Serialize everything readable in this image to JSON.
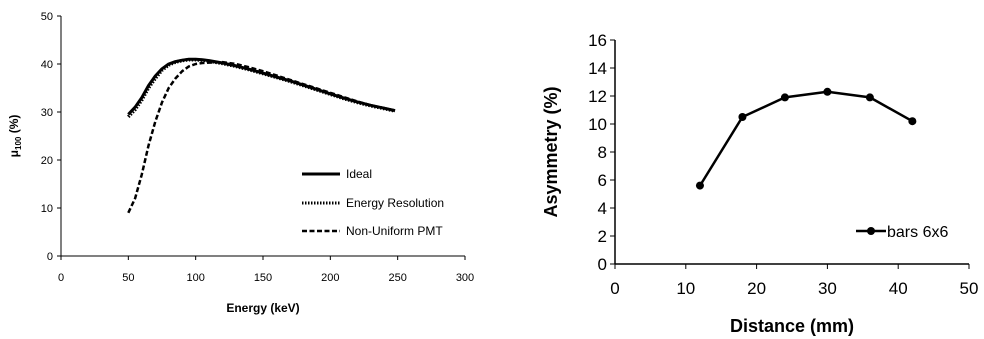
{
  "chart_data": [
    {
      "type": "line",
      "title": "",
      "xlabel": "Energy (keV)",
      "ylabel_main": "μ",
      "ylabel_sub": "100",
      "ylabel_unit": " (%)",
      "xlim": [
        0,
        300
      ],
      "ylim": [
        0,
        50
      ],
      "xticks": [
        "0",
        "50",
        "100",
        "150",
        "200",
        "250",
        "300"
      ],
      "yticks": [
        "0",
        "10",
        "20",
        "30",
        "40",
        "50"
      ],
      "grid": false,
      "legend_position": "bottom-right",
      "series": [
        {
          "name": "Ideal",
          "style": "solid",
          "x": [
            50,
            55,
            60,
            65,
            70,
            75,
            80,
            85,
            90,
            95,
            100,
            105,
            110,
            120,
            130,
            140,
            150,
            160,
            170,
            180,
            190,
            200,
            210,
            220,
            230,
            240,
            248
          ],
          "y": [
            29.5,
            31,
            33,
            35.5,
            37.5,
            39,
            40,
            40.5,
            40.8,
            41,
            41,
            40.9,
            40.7,
            40.2,
            39.6,
            38.9,
            38.1,
            37.3,
            36.5,
            35.6,
            34.7,
            33.8,
            32.9,
            32.1,
            31.4,
            30.8,
            30.3
          ]
        },
        {
          "name": "Energy Resolution",
          "style": "dotted",
          "x": [
            50,
            55,
            60,
            65,
            70,
            75,
            80,
            85,
            90,
            95,
            100,
            105,
            110,
            120,
            130,
            140,
            150,
            160,
            170,
            180,
            190,
            200,
            210,
            220,
            230,
            240,
            248
          ],
          "y": [
            29,
            30.5,
            32.5,
            35,
            37,
            38.7,
            39.8,
            40.4,
            40.7,
            40.9,
            40.9,
            40.8,
            40.6,
            40.1,
            39.5,
            38.8,
            38.0,
            37.2,
            36.4,
            35.5,
            34.6,
            33.7,
            32.8,
            32.0,
            31.3,
            30.7,
            30.2
          ]
        },
        {
          "name": "Non-Uniform PMT",
          "style": "dashed",
          "x": [
            50,
            55,
            60,
            65,
            70,
            75,
            80,
            85,
            90,
            95,
            100,
            105,
            110,
            120,
            130,
            140,
            150,
            160,
            170,
            180,
            190,
            200,
            210,
            220,
            230,
            240,
            248
          ],
          "y": [
            9,
            12,
            17,
            23,
            28,
            32,
            35,
            37,
            38.5,
            39.5,
            40,
            40.2,
            40.3,
            40.4,
            40.0,
            39.3,
            38.5,
            37.6,
            36.7,
            35.8,
            34.9,
            34.0,
            33.1,
            32.2,
            31.4,
            30.8,
            30.3
          ]
        }
      ]
    },
    {
      "type": "line",
      "title": "",
      "xlabel": "Distance (mm)",
      "ylabel": "Asymmetry (%)",
      "xlim": [
        0,
        50
      ],
      "ylim": [
        0,
        16
      ],
      "xticks": [
        "0",
        "10",
        "20",
        "30",
        "40",
        "50"
      ],
      "yticks": [
        "0",
        "2",
        "4",
        "6",
        "8",
        "10",
        "12",
        "14",
        "16"
      ],
      "grid": false,
      "legend_position": "bottom-right",
      "series": [
        {
          "name": "bars 6x6",
          "markers": true,
          "x": [
            12,
            18,
            24,
            30,
            36,
            42
          ],
          "y": [
            5.6,
            10.5,
            11.9,
            12.3,
            11.9,
            10.2
          ]
        }
      ]
    }
  ]
}
